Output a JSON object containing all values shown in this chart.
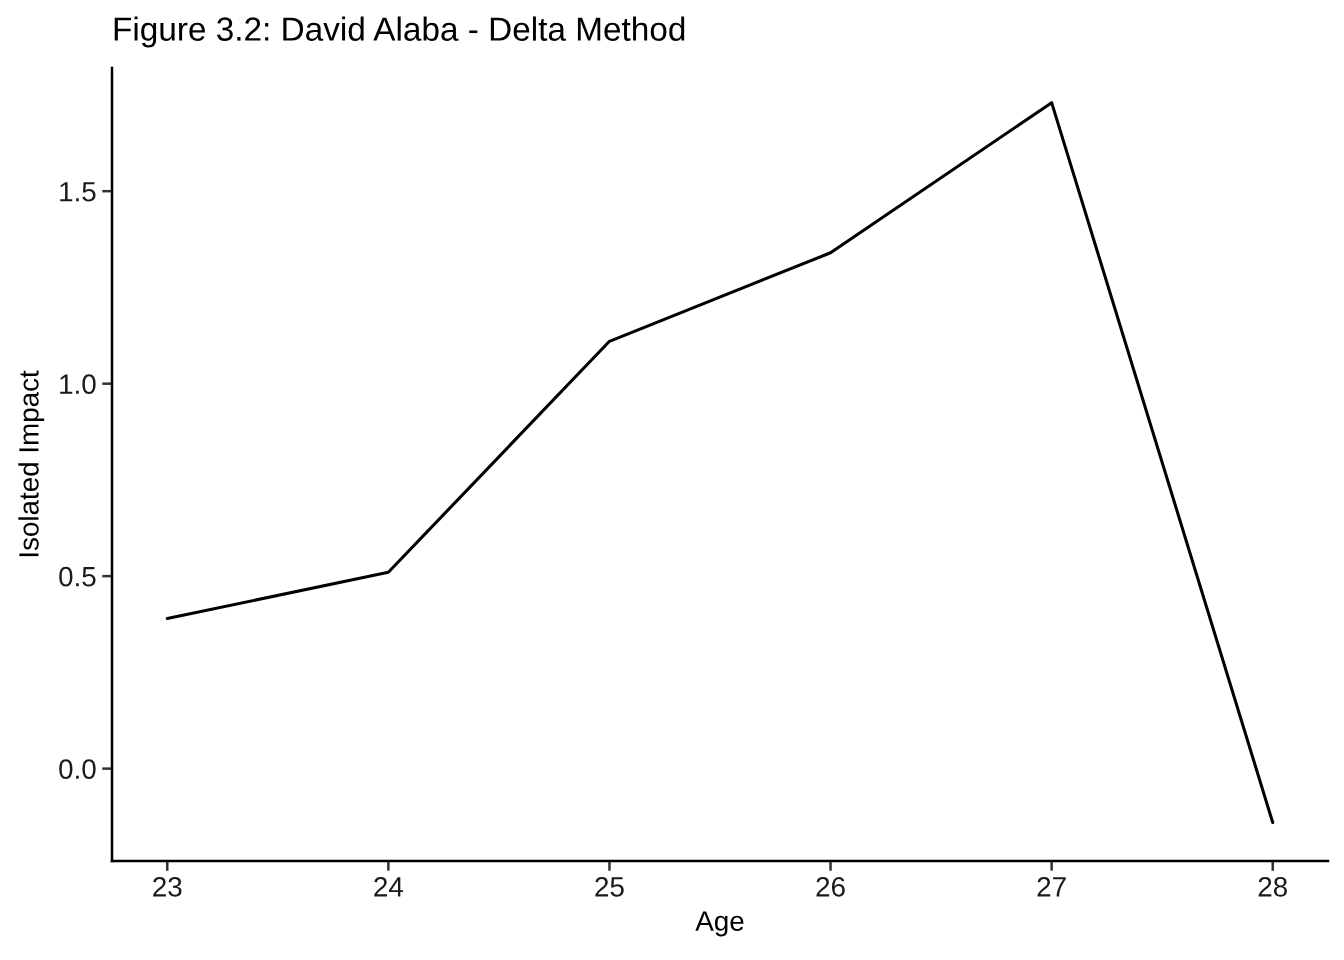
{
  "chart_data": {
    "type": "line",
    "title": "Figure 3.2: David Alaba - Delta Method",
    "xlabel": "Age",
    "ylabel": "Isolated Impact",
    "x": [
      23,
      24,
      25,
      26,
      27,
      28
    ],
    "series": [
      {
        "color": "#000000",
        "values": [
          0.39,
          0.51,
          1.11,
          1.34,
          1.73,
          -0.14
        ]
      }
    ],
    "xlim": [
      22.75,
      28.25
    ],
    "ylim": [
      -0.24,
      1.82
    ],
    "xticks": [
      23,
      24,
      25,
      26,
      27,
      28
    ],
    "yticks": [
      {
        "value": 0,
        "label": "0.0"
      },
      {
        "value": 0.5,
        "label": "0.5"
      },
      {
        "value": 1,
        "label": "1.0"
      },
      {
        "value": 1.5,
        "label": "1.5"
      }
    ],
    "grid": false,
    "marker": "none",
    "line_style": "solid"
  }
}
